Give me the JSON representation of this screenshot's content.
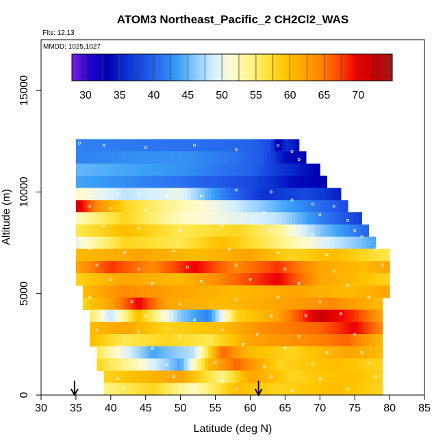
{
  "chart_data": {
    "type": "heatmap",
    "title": "ATOM3 Northeast_Pacific_2 CH2Cl2_WAS",
    "annotations": [
      "Flts: 12,13",
      "MMDD: 1025,1027"
    ],
    "xlabel": "Latitude (deg N)",
    "ylabel": "Altitude (m)",
    "xlim": [
      30,
      85
    ],
    "ylim": [
      0,
      17500
    ],
    "xticks": [
      30,
      35,
      40,
      45,
      50,
      55,
      60,
      65,
      70,
      75,
      80,
      85
    ],
    "yticks": [
      0,
      5000,
      10000,
      15000
    ],
    "colorbar": {
      "range": [
        28,
        75
      ],
      "ticks": [
        30,
        35,
        40,
        45,
        50,
        55,
        60,
        65,
        70
      ],
      "colors": [
        "#7a1fe0",
        "#1f00c8",
        "#0000b4",
        "#0a2fcf",
        "#1b4fe3",
        "#2a72f0",
        "#3aa0f5",
        "#8fccff",
        "#d6f0ff",
        "#fffbd0",
        "#fff38a",
        "#ffe33c",
        "#ffc400",
        "#ffa500",
        "#ff8300",
        "#ff4a00",
        "#ee0000",
        "#c40000",
        "#9e1a1a"
      ]
    },
    "bands": [
      {
        "alt": 12300,
        "x0": 35,
        "x1": 67,
        "stops": [
          [
            35,
            42
          ],
          [
            50,
            41
          ],
          [
            60,
            40
          ],
          [
            63,
            38
          ],
          [
            64,
            32
          ],
          [
            65,
            36
          ],
          [
            67,
            34
          ]
        ]
      },
      {
        "alt": 11700,
        "x0": 35,
        "x1": 68,
        "stops": [
          [
            35,
            42
          ],
          [
            50,
            43
          ],
          [
            58,
            41
          ],
          [
            62,
            39
          ],
          [
            65,
            34
          ],
          [
            68,
            33
          ]
        ]
      },
      {
        "alt": 11100,
        "x0": 35,
        "x1": 70,
        "stops": [
          [
            35,
            45
          ],
          [
            50,
            43
          ],
          [
            60,
            40
          ],
          [
            65,
            36
          ],
          [
            70,
            33
          ]
        ]
      },
      {
        "alt": 10500,
        "x0": 35,
        "x1": 71,
        "stops": [
          [
            35,
            44
          ],
          [
            50,
            41
          ],
          [
            60,
            38
          ],
          [
            66,
            34
          ],
          [
            71,
            33
          ]
        ]
      },
      {
        "alt": 9900,
        "x0": 35,
        "x1": 73,
        "stops": [
          [
            35,
            52
          ],
          [
            42,
            48
          ],
          [
            50,
            50
          ],
          [
            56,
            42
          ],
          [
            62,
            36
          ],
          [
            68,
            38
          ],
          [
            73,
            35
          ]
        ]
      },
      {
        "alt": 9300,
        "x0": 35,
        "x1": 74,
        "stops": [
          [
            35,
            72
          ],
          [
            38,
            64
          ],
          [
            42,
            58
          ],
          [
            48,
            54
          ],
          [
            56,
            50
          ],
          [
            62,
            46
          ],
          [
            68,
            42
          ],
          [
            74,
            38
          ]
        ]
      },
      {
        "alt": 8700,
        "x0": 35,
        "x1": 76,
        "stops": [
          [
            35,
            52
          ],
          [
            42,
            58
          ],
          [
            50,
            52
          ],
          [
            58,
            50
          ],
          [
            64,
            48
          ],
          [
            70,
            42
          ],
          [
            76,
            37
          ]
        ]
      },
      {
        "alt": 8100,
        "x0": 35,
        "x1": 77,
        "stops": [
          [
            35,
            56
          ],
          [
            42,
            60
          ],
          [
            50,
            56
          ],
          [
            58,
            58
          ],
          [
            64,
            54
          ],
          [
            70,
            46
          ],
          [
            77,
            40
          ]
        ]
      },
      {
        "alt": 7500,
        "x0": 35,
        "x1": 78,
        "stops": [
          [
            35,
            50
          ],
          [
            42,
            58
          ],
          [
            50,
            56
          ],
          [
            56,
            60
          ],
          [
            62,
            56
          ],
          [
            70,
            50
          ],
          [
            78,
            44
          ]
        ]
      },
      {
        "alt": 6900,
        "x0": 35,
        "x1": 80,
        "stops": [
          [
            35,
            60
          ],
          [
            44,
            62
          ],
          [
            52,
            60
          ],
          [
            60,
            62
          ],
          [
            66,
            58
          ],
          [
            72,
            60
          ],
          [
            80,
            56
          ]
        ]
      },
      {
        "alt": 6300,
        "x0": 35,
        "x1": 80,
        "stops": [
          [
            35,
            62
          ],
          [
            40,
            68
          ],
          [
            46,
            64
          ],
          [
            52,
            70
          ],
          [
            58,
            64
          ],
          [
            64,
            68
          ],
          [
            70,
            62
          ],
          [
            76,
            60
          ],
          [
            80,
            62
          ]
        ]
      },
      {
        "alt": 5700,
        "x0": 35,
        "x1": 80,
        "stops": [
          [
            35,
            58
          ],
          [
            42,
            62
          ],
          [
            50,
            60
          ],
          [
            58,
            66
          ],
          [
            64,
            70
          ],
          [
            70,
            62
          ],
          [
            80,
            58
          ]
        ]
      },
      {
        "alt": 5100,
        "x0": 36,
        "x1": 80,
        "stops": [
          [
            36,
            60
          ],
          [
            42,
            64
          ],
          [
            50,
            62
          ],
          [
            58,
            60
          ],
          [
            66,
            62
          ],
          [
            74,
            60
          ],
          [
            80,
            62
          ]
        ]
      },
      {
        "alt": 4500,
        "x0": 36,
        "x1": 79,
        "stops": [
          [
            36,
            58
          ],
          [
            40,
            62
          ],
          [
            44,
            70
          ],
          [
            48,
            62
          ],
          [
            56,
            60
          ],
          [
            64,
            62
          ],
          [
            72,
            64
          ],
          [
            79,
            60
          ]
        ]
      },
      {
        "alt": 3900,
        "x0": 37,
        "x1": 79,
        "stops": [
          [
            37,
            56
          ],
          [
            40,
            48
          ],
          [
            44,
            60
          ],
          [
            50,
            46
          ],
          [
            54,
            42
          ],
          [
            58,
            58
          ],
          [
            64,
            62
          ],
          [
            70,
            72
          ],
          [
            75,
            68
          ],
          [
            79,
            62
          ]
        ]
      },
      {
        "alt": 3300,
        "x0": 37,
        "x1": 79,
        "stops": [
          [
            37,
            60
          ],
          [
            42,
            62
          ],
          [
            48,
            58
          ],
          [
            56,
            60
          ],
          [
            62,
            64
          ],
          [
            70,
            66
          ],
          [
            75,
            70
          ],
          [
            79,
            64
          ]
        ]
      },
      {
        "alt": 2700,
        "x0": 37,
        "x1": 79,
        "stops": [
          [
            37,
            60
          ],
          [
            42,
            56
          ],
          [
            48,
            58
          ],
          [
            54,
            56
          ],
          [
            60,
            62
          ],
          [
            68,
            64
          ],
          [
            74,
            66
          ],
          [
            79,
            60
          ]
        ]
      },
      {
        "alt": 2100,
        "x0": 38,
        "x1": 79,
        "stops": [
          [
            38,
            56
          ],
          [
            42,
            50
          ],
          [
            46,
            44
          ],
          [
            52,
            48
          ],
          [
            56,
            66
          ],
          [
            60,
            60
          ],
          [
            66,
            58
          ],
          [
            74,
            62
          ],
          [
            79,
            60
          ]
        ]
      },
      {
        "alt": 1500,
        "x0": 38,
        "x1": 79,
        "stops": [
          [
            38,
            58
          ],
          [
            44,
            52
          ],
          [
            50,
            44
          ],
          [
            54,
            60
          ],
          [
            58,
            66
          ],
          [
            64,
            58
          ],
          [
            72,
            60
          ],
          [
            79,
            58
          ]
        ]
      },
      {
        "alt": 900,
        "x0": 39,
        "x1": 79,
        "stops": [
          [
            39,
            58
          ],
          [
            44,
            60
          ],
          [
            50,
            62
          ],
          [
            56,
            54
          ],
          [
            60,
            62
          ],
          [
            66,
            58
          ],
          [
            74,
            60
          ],
          [
            79,
            58
          ]
        ]
      },
      {
        "alt": 300,
        "x0": 39,
        "x1": 79,
        "stops": [
          [
            39,
            54
          ],
          [
            46,
            58
          ],
          [
            52,
            52
          ],
          [
            58,
            60
          ],
          [
            64,
            58
          ],
          [
            72,
            60
          ],
          [
            79,
            58
          ]
        ]
      }
    ],
    "samples": [
      [
        35.5,
        12400
      ],
      [
        39,
        12300
      ],
      [
        45,
        12200
      ],
      [
        52,
        12300
      ],
      [
        58,
        12100
      ],
      [
        64,
        12300
      ],
      [
        66,
        12000
      ],
      [
        67,
        11600
      ],
      [
        36,
        10000
      ],
      [
        41,
        9900
      ],
      [
        44,
        9900
      ],
      [
        48,
        9800
      ],
      [
        53,
        9800
      ],
      [
        58,
        10100
      ],
      [
        63,
        10000
      ],
      [
        66,
        9600
      ],
      [
        69,
        9400
      ],
      [
        72,
        9300
      ],
      [
        37,
        9300
      ],
      [
        40,
        9200
      ],
      [
        45,
        9100
      ],
      [
        55,
        9200
      ],
      [
        62,
        9000
      ],
      [
        70,
        8900
      ],
      [
        74,
        8600
      ],
      [
        75,
        8100
      ],
      [
        39,
        8300
      ],
      [
        44,
        8200
      ],
      [
        50,
        8100
      ],
      [
        56,
        8300
      ],
      [
        63,
        8100
      ],
      [
        69,
        7900
      ],
      [
        76,
        7800
      ],
      [
        37,
        7200
      ],
      [
        42,
        7000
      ],
      [
        49,
        7100
      ],
      [
        57,
        7200
      ],
      [
        64,
        7000
      ],
      [
        71,
        6900
      ],
      [
        78,
        7200
      ],
      [
        38,
        6400
      ],
      [
        44,
        6200
      ],
      [
        51,
        6300
      ],
      [
        58,
        6400
      ],
      [
        65,
        6200
      ],
      [
        72,
        6100
      ],
      [
        79,
        6400
      ],
      [
        40,
        5700
      ],
      [
        46,
        5500
      ],
      [
        53,
        5600
      ],
      [
        60,
        5700
      ],
      [
        67,
        5500
      ],
      [
        74,
        5400
      ],
      [
        37,
        4800
      ],
      [
        43,
        4600
      ],
      [
        50,
        4500
      ],
      [
        58,
        4700
      ],
      [
        64,
        4800
      ],
      [
        70,
        4600
      ],
      [
        77,
        4800
      ],
      [
        39,
        4000
      ],
      [
        45,
        3900
      ],
      [
        52,
        3700
      ],
      [
        57,
        3900
      ],
      [
        63,
        3900
      ],
      [
        68,
        3900
      ],
      [
        73,
        4000
      ],
      [
        38,
        3200
      ],
      [
        44,
        3100
      ],
      [
        50,
        2900
      ],
      [
        56,
        3200
      ],
      [
        61,
        3000
      ],
      [
        67,
        2900
      ],
      [
        75,
        3000
      ],
      [
        41,
        2400
      ],
      [
        46,
        2300
      ],
      [
        53,
        2200
      ],
      [
        59,
        2500
      ],
      [
        65,
        2300
      ],
      [
        71,
        2100
      ],
      [
        76,
        2100
      ],
      [
        40,
        1600
      ],
      [
        48,
        1500
      ],
      [
        55,
        1600
      ],
      [
        62,
        1400
      ],
      [
        69,
        1500
      ],
      [
        77,
        1600
      ],
      [
        41,
        800
      ],
      [
        49,
        900
      ],
      [
        56,
        700
      ],
      [
        63,
        900
      ],
      [
        70,
        800
      ],
      [
        78,
        900
      ],
      [
        42,
        300
      ],
      [
        50,
        200
      ],
      [
        58,
        300
      ],
      [
        66,
        200
      ],
      [
        74,
        300
      ]
    ],
    "markers": [
      34.8,
      61.2
    ]
  }
}
